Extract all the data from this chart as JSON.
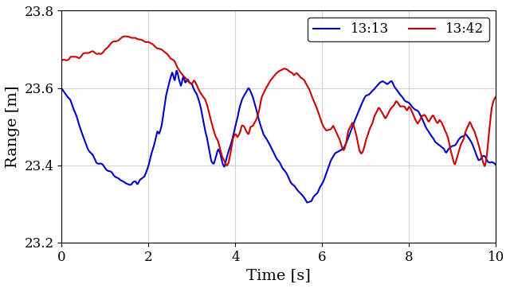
{
  "title": "",
  "xlabel": "Time [s]",
  "ylabel": "Range [m]",
  "xlim": [
    0,
    10
  ],
  "ylim": [
    23.2,
    23.8
  ],
  "yticks": [
    23.2,
    23.4,
    23.6,
    23.8
  ],
  "xticks": [
    0,
    2,
    4,
    6,
    8,
    10
  ],
  "legend_labels": [
    "13:13",
    "13:42"
  ],
  "line_colors": [
    "#0000cc",
    "#cc0000"
  ],
  "line_width": 1.5,
  "grid": true,
  "blue_waypoints": [
    [
      0.0,
      23.6
    ],
    [
      0.2,
      23.57
    ],
    [
      0.4,
      23.5
    ],
    [
      0.6,
      23.45
    ],
    [
      0.8,
      23.41
    ],
    [
      1.0,
      23.39
    ],
    [
      1.2,
      23.37
    ],
    [
      1.4,
      23.36
    ],
    [
      1.6,
      23.35
    ],
    [
      1.7,
      23.36
    ],
    [
      1.75,
      23.35
    ],
    [
      1.8,
      23.36
    ],
    [
      1.9,
      23.37
    ],
    [
      2.0,
      23.4
    ],
    [
      2.1,
      23.44
    ],
    [
      2.2,
      23.49
    ],
    [
      2.25,
      23.48
    ],
    [
      2.3,
      23.5
    ],
    [
      2.4,
      23.58
    ],
    [
      2.5,
      23.62
    ],
    [
      2.55,
      23.64
    ],
    [
      2.6,
      23.62
    ],
    [
      2.65,
      23.65
    ],
    [
      2.7,
      23.62
    ],
    [
      2.75,
      23.6
    ],
    [
      2.8,
      23.63
    ],
    [
      2.85,
      23.61
    ],
    [
      2.9,
      23.62
    ],
    [
      2.95,
      23.61
    ],
    [
      3.0,
      23.61
    ],
    [
      3.05,
      23.6
    ],
    [
      3.1,
      23.59
    ],
    [
      3.15,
      23.57
    ],
    [
      3.2,
      23.55
    ],
    [
      3.25,
      23.52
    ],
    [
      3.3,
      23.49
    ],
    [
      3.35,
      23.47
    ],
    [
      3.4,
      23.44
    ],
    [
      3.45,
      23.41
    ],
    [
      3.5,
      23.4
    ],
    [
      3.55,
      23.42
    ],
    [
      3.6,
      23.44
    ],
    [
      3.65,
      23.43
    ],
    [
      3.7,
      23.41
    ],
    [
      3.75,
      23.4
    ],
    [
      3.8,
      23.42
    ],
    [
      3.85,
      23.44
    ],
    [
      3.9,
      23.46
    ],
    [
      3.95,
      23.48
    ],
    [
      4.0,
      23.5
    ],
    [
      4.05,
      23.52
    ],
    [
      4.1,
      23.55
    ],
    [
      4.15,
      23.57
    ],
    [
      4.2,
      23.58
    ],
    [
      4.25,
      23.59
    ],
    [
      4.3,
      23.6
    ],
    [
      4.35,
      23.59
    ],
    [
      4.4,
      23.58
    ],
    [
      4.45,
      23.56
    ],
    [
      4.5,
      23.54
    ],
    [
      4.55,
      23.52
    ],
    [
      4.6,
      23.5
    ],
    [
      4.65,
      23.48
    ],
    [
      4.7,
      23.47
    ],
    [
      4.75,
      23.46
    ],
    [
      4.8,
      23.45
    ],
    [
      4.85,
      23.44
    ],
    [
      4.9,
      23.43
    ],
    [
      4.95,
      23.42
    ],
    [
      5.0,
      23.41
    ],
    [
      5.1,
      23.39
    ],
    [
      5.2,
      23.37
    ],
    [
      5.3,
      23.35
    ],
    [
      5.4,
      23.34
    ],
    [
      5.5,
      23.33
    ],
    [
      5.6,
      23.32
    ],
    [
      5.65,
      23.31
    ],
    [
      5.7,
      23.31
    ],
    [
      5.75,
      23.31
    ],
    [
      5.8,
      23.32
    ],
    [
      5.9,
      23.33
    ],
    [
      6.0,
      23.35
    ],
    [
      6.1,
      23.38
    ],
    [
      6.2,
      23.41
    ],
    [
      6.3,
      23.43
    ],
    [
      6.4,
      23.44
    ],
    [
      6.5,
      23.45
    ],
    [
      6.6,
      23.47
    ],
    [
      6.7,
      23.5
    ],
    [
      6.8,
      23.53
    ],
    [
      6.9,
      23.56
    ],
    [
      7.0,
      23.58
    ],
    [
      7.1,
      23.59
    ],
    [
      7.2,
      23.6
    ],
    [
      7.3,
      23.61
    ],
    [
      7.4,
      23.62
    ],
    [
      7.5,
      23.61
    ],
    [
      7.6,
      23.62
    ],
    [
      7.65,
      23.61
    ],
    [
      7.7,
      23.6
    ],
    [
      7.75,
      23.59
    ],
    [
      7.8,
      23.58
    ],
    [
      7.9,
      23.57
    ],
    [
      8.0,
      23.56
    ],
    [
      8.1,
      23.55
    ],
    [
      8.2,
      23.54
    ],
    [
      8.3,
      23.52
    ],
    [
      8.4,
      23.5
    ],
    [
      8.5,
      23.48
    ],
    [
      8.6,
      23.46
    ],
    [
      8.7,
      23.45
    ],
    [
      8.8,
      23.44
    ],
    [
      8.85,
      23.43
    ],
    [
      8.9,
      23.44
    ],
    [
      9.0,
      23.45
    ],
    [
      9.1,
      23.46
    ],
    [
      9.2,
      23.47
    ],
    [
      9.3,
      23.48
    ],
    [
      9.4,
      23.46
    ],
    [
      9.5,
      23.44
    ],
    [
      9.6,
      23.42
    ],
    [
      9.7,
      23.42
    ],
    [
      9.8,
      23.41
    ],
    [
      9.9,
      23.41
    ],
    [
      10.0,
      23.4
    ]
  ],
  "red_waypoints": [
    [
      0.0,
      23.67
    ],
    [
      0.1,
      23.67
    ],
    [
      0.2,
      23.68
    ],
    [
      0.3,
      23.68
    ],
    [
      0.4,
      23.68
    ],
    [
      0.5,
      23.69
    ],
    [
      0.6,
      23.69
    ],
    [
      0.7,
      23.69
    ],
    [
      0.8,
      23.69
    ],
    [
      0.9,
      23.69
    ],
    [
      1.0,
      23.7
    ],
    [
      1.1,
      23.71
    ],
    [
      1.2,
      23.72
    ],
    [
      1.3,
      23.72
    ],
    [
      1.4,
      23.73
    ],
    [
      1.5,
      23.73
    ],
    [
      1.6,
      23.73
    ],
    [
      1.7,
      23.73
    ],
    [
      1.8,
      23.72
    ],
    [
      1.9,
      23.72
    ],
    [
      2.0,
      23.72
    ],
    [
      2.1,
      23.71
    ],
    [
      2.2,
      23.7
    ],
    [
      2.3,
      23.7
    ],
    [
      2.4,
      23.69
    ],
    [
      2.5,
      23.68
    ],
    [
      2.6,
      23.67
    ],
    [
      2.7,
      23.65
    ],
    [
      2.8,
      23.63
    ],
    [
      2.9,
      23.62
    ],
    [
      3.0,
      23.61
    ],
    [
      3.05,
      23.62
    ],
    [
      3.1,
      23.61
    ],
    [
      3.15,
      23.6
    ],
    [
      3.2,
      23.59
    ],
    [
      3.25,
      23.58
    ],
    [
      3.3,
      23.57
    ],
    [
      3.35,
      23.55
    ],
    [
      3.4,
      23.53
    ],
    [
      3.45,
      23.51
    ],
    [
      3.5,
      23.49
    ],
    [
      3.55,
      23.47
    ],
    [
      3.6,
      23.46
    ],
    [
      3.65,
      23.44
    ],
    [
      3.7,
      23.42
    ],
    [
      3.75,
      23.41
    ],
    [
      3.8,
      23.4
    ],
    [
      3.85,
      23.41
    ],
    [
      3.9,
      23.44
    ],
    [
      3.95,
      23.47
    ],
    [
      4.0,
      23.48
    ],
    [
      4.05,
      23.47
    ],
    [
      4.1,
      23.48
    ],
    [
      4.15,
      23.5
    ],
    [
      4.2,
      23.5
    ],
    [
      4.25,
      23.49
    ],
    [
      4.3,
      23.48
    ],
    [
      4.35,
      23.5
    ],
    [
      4.4,
      23.5
    ],
    [
      4.45,
      23.51
    ],
    [
      4.5,
      23.52
    ],
    [
      4.55,
      23.54
    ],
    [
      4.6,
      23.57
    ],
    [
      4.7,
      23.6
    ],
    [
      4.8,
      23.62
    ],
    [
      4.9,
      23.63
    ],
    [
      5.0,
      23.64
    ],
    [
      5.1,
      23.65
    ],
    [
      5.15,
      23.65
    ],
    [
      5.2,
      23.65
    ],
    [
      5.25,
      23.65
    ],
    [
      5.3,
      23.65
    ],
    [
      5.35,
      23.64
    ],
    [
      5.4,
      23.64
    ],
    [
      5.5,
      23.63
    ],
    [
      5.6,
      23.62
    ],
    [
      5.7,
      23.6
    ],
    [
      5.8,
      23.57
    ],
    [
      5.9,
      23.54
    ],
    [
      6.0,
      23.51
    ],
    [
      6.1,
      23.49
    ],
    [
      6.2,
      23.49
    ],
    [
      6.25,
      23.5
    ],
    [
      6.3,
      23.49
    ],
    [
      6.35,
      23.48
    ],
    [
      6.4,
      23.47
    ],
    [
      6.45,
      23.45
    ],
    [
      6.5,
      23.44
    ],
    [
      6.55,
      23.46
    ],
    [
      6.6,
      23.49
    ],
    [
      6.65,
      23.5
    ],
    [
      6.7,
      23.51
    ],
    [
      6.75,
      23.49
    ],
    [
      6.8,
      23.47
    ],
    [
      6.85,
      23.44
    ],
    [
      6.9,
      23.43
    ],
    [
      6.95,
      23.44
    ],
    [
      7.0,
      23.46
    ],
    [
      7.05,
      23.48
    ],
    [
      7.1,
      23.5
    ],
    [
      7.15,
      23.51
    ],
    [
      7.2,
      23.53
    ],
    [
      7.25,
      23.54
    ],
    [
      7.3,
      23.55
    ],
    [
      7.35,
      23.54
    ],
    [
      7.4,
      23.53
    ],
    [
      7.45,
      23.52
    ],
    [
      7.5,
      23.53
    ],
    [
      7.55,
      23.54
    ],
    [
      7.6,
      23.55
    ],
    [
      7.65,
      23.56
    ],
    [
      7.7,
      23.57
    ],
    [
      7.75,
      23.56
    ],
    [
      7.8,
      23.55
    ],
    [
      7.85,
      23.55
    ],
    [
      7.9,
      23.55
    ],
    [
      7.95,
      23.54
    ],
    [
      8.0,
      23.55
    ],
    [
      8.05,
      23.54
    ],
    [
      8.1,
      23.53
    ],
    [
      8.15,
      23.52
    ],
    [
      8.2,
      23.51
    ],
    [
      8.25,
      23.52
    ],
    [
      8.3,
      23.53
    ],
    [
      8.35,
      23.53
    ],
    [
      8.4,
      23.52
    ],
    [
      8.45,
      23.51
    ],
    [
      8.5,
      23.52
    ],
    [
      8.55,
      23.53
    ],
    [
      8.6,
      23.52
    ],
    [
      8.65,
      23.51
    ],
    [
      8.7,
      23.52
    ],
    [
      8.75,
      23.51
    ],
    [
      8.8,
      23.5
    ],
    [
      8.85,
      23.49
    ],
    [
      8.9,
      23.47
    ],
    [
      8.95,
      23.44
    ],
    [
      9.0,
      23.42
    ],
    [
      9.05,
      23.4
    ],
    [
      9.1,
      23.42
    ],
    [
      9.15,
      23.44
    ],
    [
      9.2,
      23.46
    ],
    [
      9.25,
      23.47
    ],
    [
      9.3,
      23.49
    ],
    [
      9.35,
      23.5
    ],
    [
      9.4,
      23.51
    ],
    [
      9.45,
      23.5
    ],
    [
      9.5,
      23.49
    ],
    [
      9.55,
      23.47
    ],
    [
      9.6,
      23.45
    ],
    [
      9.65,
      23.43
    ],
    [
      9.7,
      23.41
    ],
    [
      9.75,
      23.4
    ],
    [
      9.8,
      23.44
    ],
    [
      9.85,
      23.5
    ],
    [
      9.9,
      23.55
    ],
    [
      9.95,
      23.57
    ],
    [
      10.0,
      23.58
    ]
  ]
}
